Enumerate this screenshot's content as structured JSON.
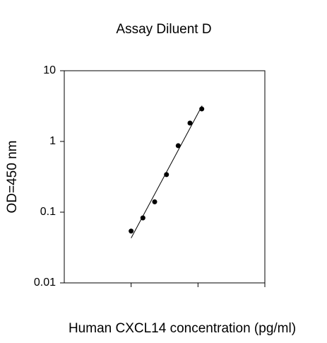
{
  "chart_data": {
    "type": "scatter",
    "title": "Assay Diluent D",
    "x_label": "Human CXCL14 concentration (pg/ml)",
    "y_label": "OD=450 nm",
    "x": [
      10,
      15,
      22.5,
      33.8,
      50.6,
      75.9,
      113.9
    ],
    "values": [
      0.054,
      0.083,
      0.14,
      0.34,
      0.87,
      1.82,
      2.88
    ],
    "color": "#000000",
    "fit": {
      "x": [
        10,
        115
      ],
      "values": [
        0.043,
        3.2
      ]
    },
    "xscale": "log",
    "yscale": "log",
    "xlim": [
      1,
      1000
    ],
    "xticks": [
      10,
      100,
      1000
    ],
    "ylim": [
      0.01,
      10
    ],
    "yticks": [
      0.01,
      0.1,
      1,
      10
    ]
  }
}
